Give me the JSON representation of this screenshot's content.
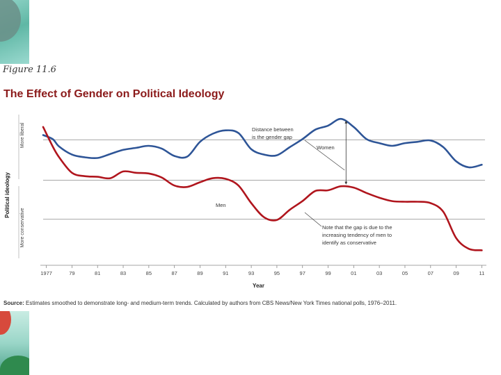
{
  "figure_label": "Figure 11.6",
  "source": {
    "label": "Source:",
    "text": "Estimates smoothed to demonstrate long- and medium-term trends. Calculated by authors from CBS News/New York Times national polls, 1976–2011."
  },
  "colors": {
    "women": "#2e5597",
    "men": "#b0151d",
    "title": "#8b1a1a",
    "grid": "#888888"
  },
  "chart_data": {
    "type": "line",
    "title": "The Effect of Gender on Political Ideology",
    "xlabel": "Year",
    "ylabel": "Political ideology",
    "ylabel_top": "More liberal",
    "ylabel_bottom": "More conservative",
    "x_ticks": [
      "1977",
      "79",
      "81",
      "83",
      "85",
      "87",
      "89",
      "91",
      "93",
      "95",
      "97",
      "99",
      "01",
      "03",
      "05",
      "07",
      "09",
      "11"
    ],
    "xlim": [
      1976.75,
      2011.25
    ],
    "ylim": [
      0,
      10
    ],
    "grid_y": [
      8.8,
      5.8,
      2.9
    ],
    "x": [
      1976.75,
      1977.5,
      1978.0,
      1979.0,
      1980.0,
      1981.0,
      1982.0,
      1983.0,
      1984.0,
      1985.0,
      1986.0,
      1987.0,
      1988.0,
      1989.0,
      1990.0,
      1991.0,
      1992.0,
      1993.0,
      1994.0,
      1995.0,
      1996.0,
      1997.0,
      1998.0,
      1999.0,
      2000.0,
      2001.0,
      2002.0,
      2003.0,
      2004.0,
      2005.0,
      2006.0,
      2007.0,
      2008.0,
      2009.0,
      2010.0,
      2011.0
    ],
    "series": [
      {
        "name": "Women",
        "values": [
          9.15,
          8.85,
          8.3,
          7.7,
          7.5,
          7.45,
          7.75,
          8.05,
          8.2,
          8.35,
          8.15,
          7.6,
          7.55,
          8.65,
          9.25,
          9.5,
          9.3,
          8.1,
          7.7,
          7.65,
          8.25,
          8.85,
          9.55,
          9.85,
          10.35,
          9.75,
          8.85,
          8.55,
          8.35,
          8.55,
          8.65,
          8.75,
          8.25,
          7.2,
          6.75,
          6.95
        ]
      },
      {
        "name": "Men",
        "values": [
          9.75,
          8.3,
          7.5,
          6.35,
          6.1,
          6.05,
          5.95,
          6.45,
          6.35,
          6.3,
          6.0,
          5.4,
          5.3,
          5.65,
          5.95,
          5.9,
          5.4,
          4.1,
          3.05,
          2.85,
          3.6,
          4.25,
          5.0,
          5.05,
          5.35,
          5.25,
          4.85,
          4.5,
          4.25,
          4.2,
          4.2,
          4.1,
          3.45,
          1.5,
          0.7,
          0.6
        ]
      }
    ],
    "annotations": {
      "gap": [
        "Distance between",
        "is the gender gap"
      ],
      "women": "Women",
      "men": "Men",
      "note": [
        "Note that the gap is due to the",
        "increasing tendency of men to",
        "identify as conservative"
      ]
    }
  }
}
